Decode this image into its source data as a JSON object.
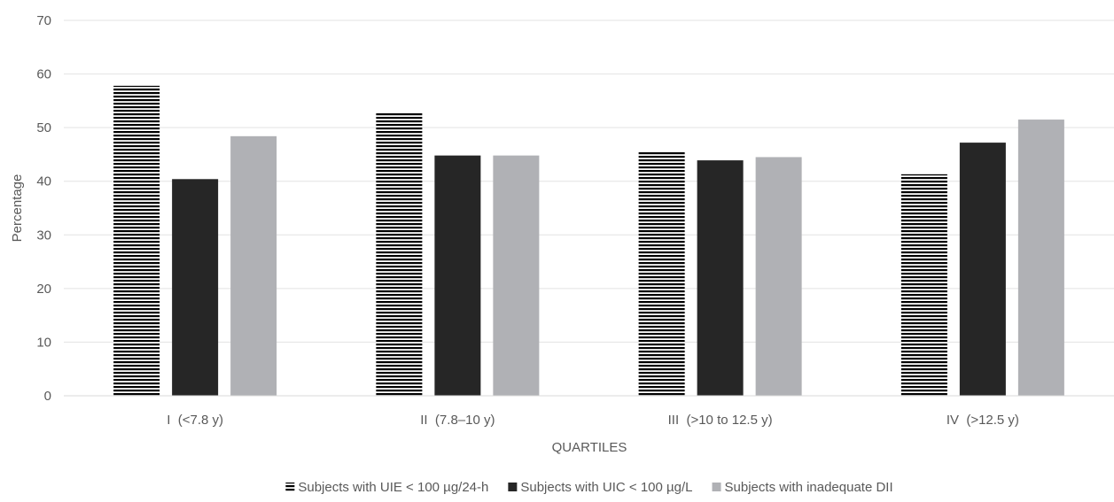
{
  "chart_data": {
    "type": "bar",
    "title": "",
    "xlabel": "QUARTILES",
    "ylabel": "Percentage",
    "ylim": [
      0,
      70
    ],
    "yticks": [
      0,
      10,
      20,
      30,
      40,
      50,
      60,
      70
    ],
    "grid": true,
    "legend_position": "bottom",
    "categories": [
      "I  (<7.8 y)",
      "II  (7.8–10 y)",
      "III  (>10 to 12.5 y)",
      "IV  (>12.5 y)"
    ],
    "series": [
      {
        "name": "Subjects with UIE < 100 µg/24-h",
        "values": [
          57.8,
          52.9,
          45.4,
          41.3
        ],
        "color": "#000000",
        "pattern": "horizontal-stripes"
      },
      {
        "name": "Subjects with UIC < 100 µg/L",
        "values": [
          40.4,
          44.8,
          43.9,
          47.2
        ],
        "color": "#262626",
        "pattern": "solid"
      },
      {
        "name": "Subjects with inadequate DII",
        "values": [
          48.4,
          44.8,
          44.5,
          51.5
        ],
        "color": "#b0b1b5",
        "pattern": "solid"
      }
    ]
  }
}
